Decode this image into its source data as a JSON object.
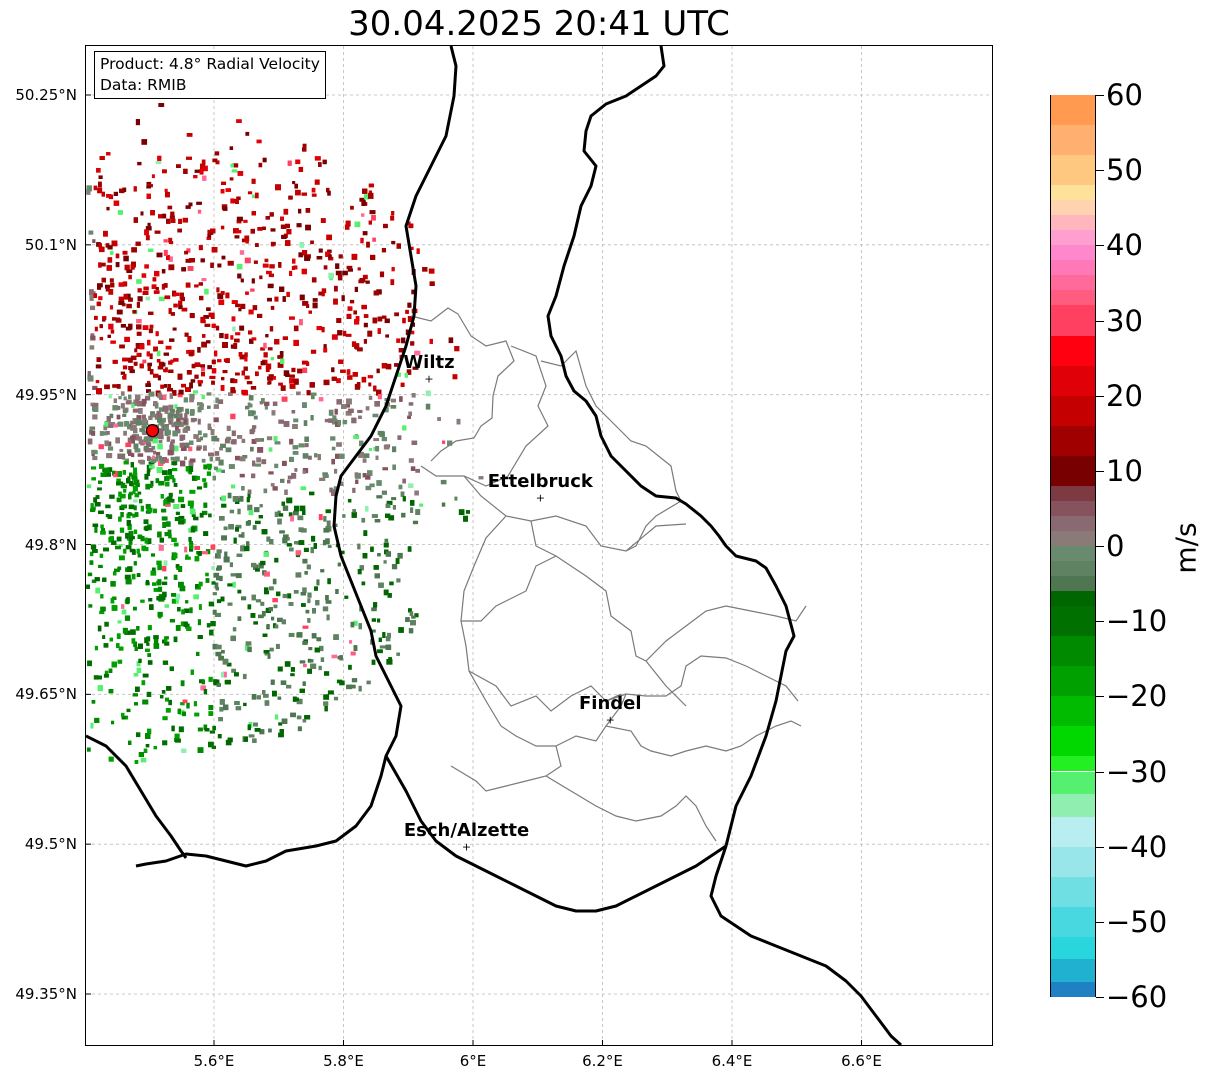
{
  "title": "30.04.2025 20:41 UTC",
  "info": {
    "product": "Product: 4.8° Radial Velocity",
    "data": "Data: RMIB"
  },
  "map": {
    "lon_range": [
      5.4,
      6.8
    ],
    "lat_range": [
      49.3,
      50.3
    ],
    "lat_ticks": [
      {
        "value": 50.25,
        "label": "50.25°N"
      },
      {
        "value": 50.1,
        "label": "50.1°N"
      },
      {
        "value": 49.95,
        "label": "49.95°N"
      },
      {
        "value": 49.8,
        "label": "49.8°N"
      },
      {
        "value": 49.65,
        "label": "49.65°N"
      },
      {
        "value": 49.5,
        "label": "49.5°N"
      },
      {
        "value": 49.35,
        "label": "49.35°N"
      }
    ],
    "lon_ticks": [
      {
        "value": 5.6,
        "label": "5.6°E"
      },
      {
        "value": 5.8,
        "label": "5.8°E"
      },
      {
        "value": 6.0,
        "label": "6°E"
      },
      {
        "value": 6.2,
        "label": "6.2°E"
      },
      {
        "value": 6.4,
        "label": "6.4°E"
      },
      {
        "value": 6.6,
        "label": "6.6°E"
      }
    ],
    "grid": true,
    "radar_site": {
      "lon": 5.505,
      "lat": 49.914
    },
    "cities": [
      {
        "name": "Wiltz",
        "lon": 5.932,
        "lat": 49.966
      },
      {
        "name": "Ettelbruck",
        "lon": 6.104,
        "lat": 49.847
      },
      {
        "name": "Findel",
        "lon": 6.212,
        "lat": 49.624
      },
      {
        "name": "Esch/Alzette",
        "lon": 5.99,
        "lat": 49.497
      }
    ]
  },
  "colorbar": {
    "label": "m/s",
    "min": -60,
    "max": 60,
    "ticks": [
      {
        "value": 60,
        "label": "60"
      },
      {
        "value": 50,
        "label": "50"
      },
      {
        "value": 40,
        "label": "40"
      },
      {
        "value": 30,
        "label": "30"
      },
      {
        "value": 20,
        "label": "20"
      },
      {
        "value": 10,
        "label": "10"
      },
      {
        "value": 0,
        "label": "0"
      },
      {
        "value": -10,
        "label": "−10"
      },
      {
        "value": -20,
        "label": "−20"
      },
      {
        "value": -30,
        "label": "−30"
      },
      {
        "value": -40,
        "label": "−40"
      },
      {
        "value": -50,
        "label": "−50"
      },
      {
        "value": -60,
        "label": "−60"
      }
    ],
    "color_stops": [
      {
        "from": 60,
        "to": 56,
        "color": "#ff9a50"
      },
      {
        "from": 56,
        "to": 52,
        "color": "#ffb070"
      },
      {
        "from": 52,
        "to": 48,
        "color": "#ffc880"
      },
      {
        "from": 48,
        "to": 46,
        "color": "#ffe29a"
      },
      {
        "from": 46,
        "to": 44,
        "color": "#ffd3b0"
      },
      {
        "from": 44,
        "to": 42,
        "color": "#ffb6be"
      },
      {
        "from": 42,
        "to": 40,
        "color": "#ff9fd0"
      },
      {
        "from": 40,
        "to": 38,
        "color": "#ff88cc"
      },
      {
        "from": 38,
        "to": 36,
        "color": "#ff78b8"
      },
      {
        "from": 36,
        "to": 34,
        "color": "#ff6a9a"
      },
      {
        "from": 34,
        "to": 32,
        "color": "#ff5c80"
      },
      {
        "from": 32,
        "to": 28,
        "color": "#ff4060"
      },
      {
        "from": 28,
        "to": 24,
        "color": "#ff0010"
      },
      {
        "from": 24,
        "to": 20,
        "color": "#e00008"
      },
      {
        "from": 20,
        "to": 16,
        "color": "#c40000"
      },
      {
        "from": 16,
        "to": 12,
        "color": "#a00000"
      },
      {
        "from": 12,
        "to": 8,
        "color": "#780000"
      },
      {
        "from": 8,
        "to": 6,
        "color": "#7e3a42"
      },
      {
        "from": 6,
        "to": 4,
        "color": "#86525e"
      },
      {
        "from": 4,
        "to": 2,
        "color": "#8a6a72"
      },
      {
        "from": 2,
        "to": 0,
        "color": "#8a7a78"
      },
      {
        "from": 0,
        "to": -2,
        "color": "#6a8a70"
      },
      {
        "from": -2,
        "to": -4,
        "color": "#5e8262"
      },
      {
        "from": -4,
        "to": -6,
        "color": "#4e7650"
      },
      {
        "from": -6,
        "to": -8,
        "color": "#006600"
      },
      {
        "from": -8,
        "to": -12,
        "color": "#007000"
      },
      {
        "from": -12,
        "to": -16,
        "color": "#008a00"
      },
      {
        "from": -16,
        "to": -20,
        "color": "#00a000"
      },
      {
        "from": -20,
        "to": -24,
        "color": "#00bb00"
      },
      {
        "from": -24,
        "to": -28,
        "color": "#00d800"
      },
      {
        "from": -28,
        "to": -30,
        "color": "#22f022"
      },
      {
        "from": -30,
        "to": -33,
        "color": "#55f070"
      },
      {
        "from": -33,
        "to": -36,
        "color": "#90eeb0"
      },
      {
        "from": -36,
        "to": -40,
        "color": "#b8eef0"
      },
      {
        "from": -40,
        "to": -44,
        "color": "#98e6ea"
      },
      {
        "from": -44,
        "to": -48,
        "color": "#70dfe4"
      },
      {
        "from": -48,
        "to": -52,
        "color": "#48d8e0"
      },
      {
        "from": -52,
        "to": -55,
        "color": "#2ad6de"
      },
      {
        "from": -55,
        "to": -58,
        "color": "#20b0d0"
      },
      {
        "from": -58,
        "to": -60,
        "color": "#2080c4"
      }
    ]
  }
}
